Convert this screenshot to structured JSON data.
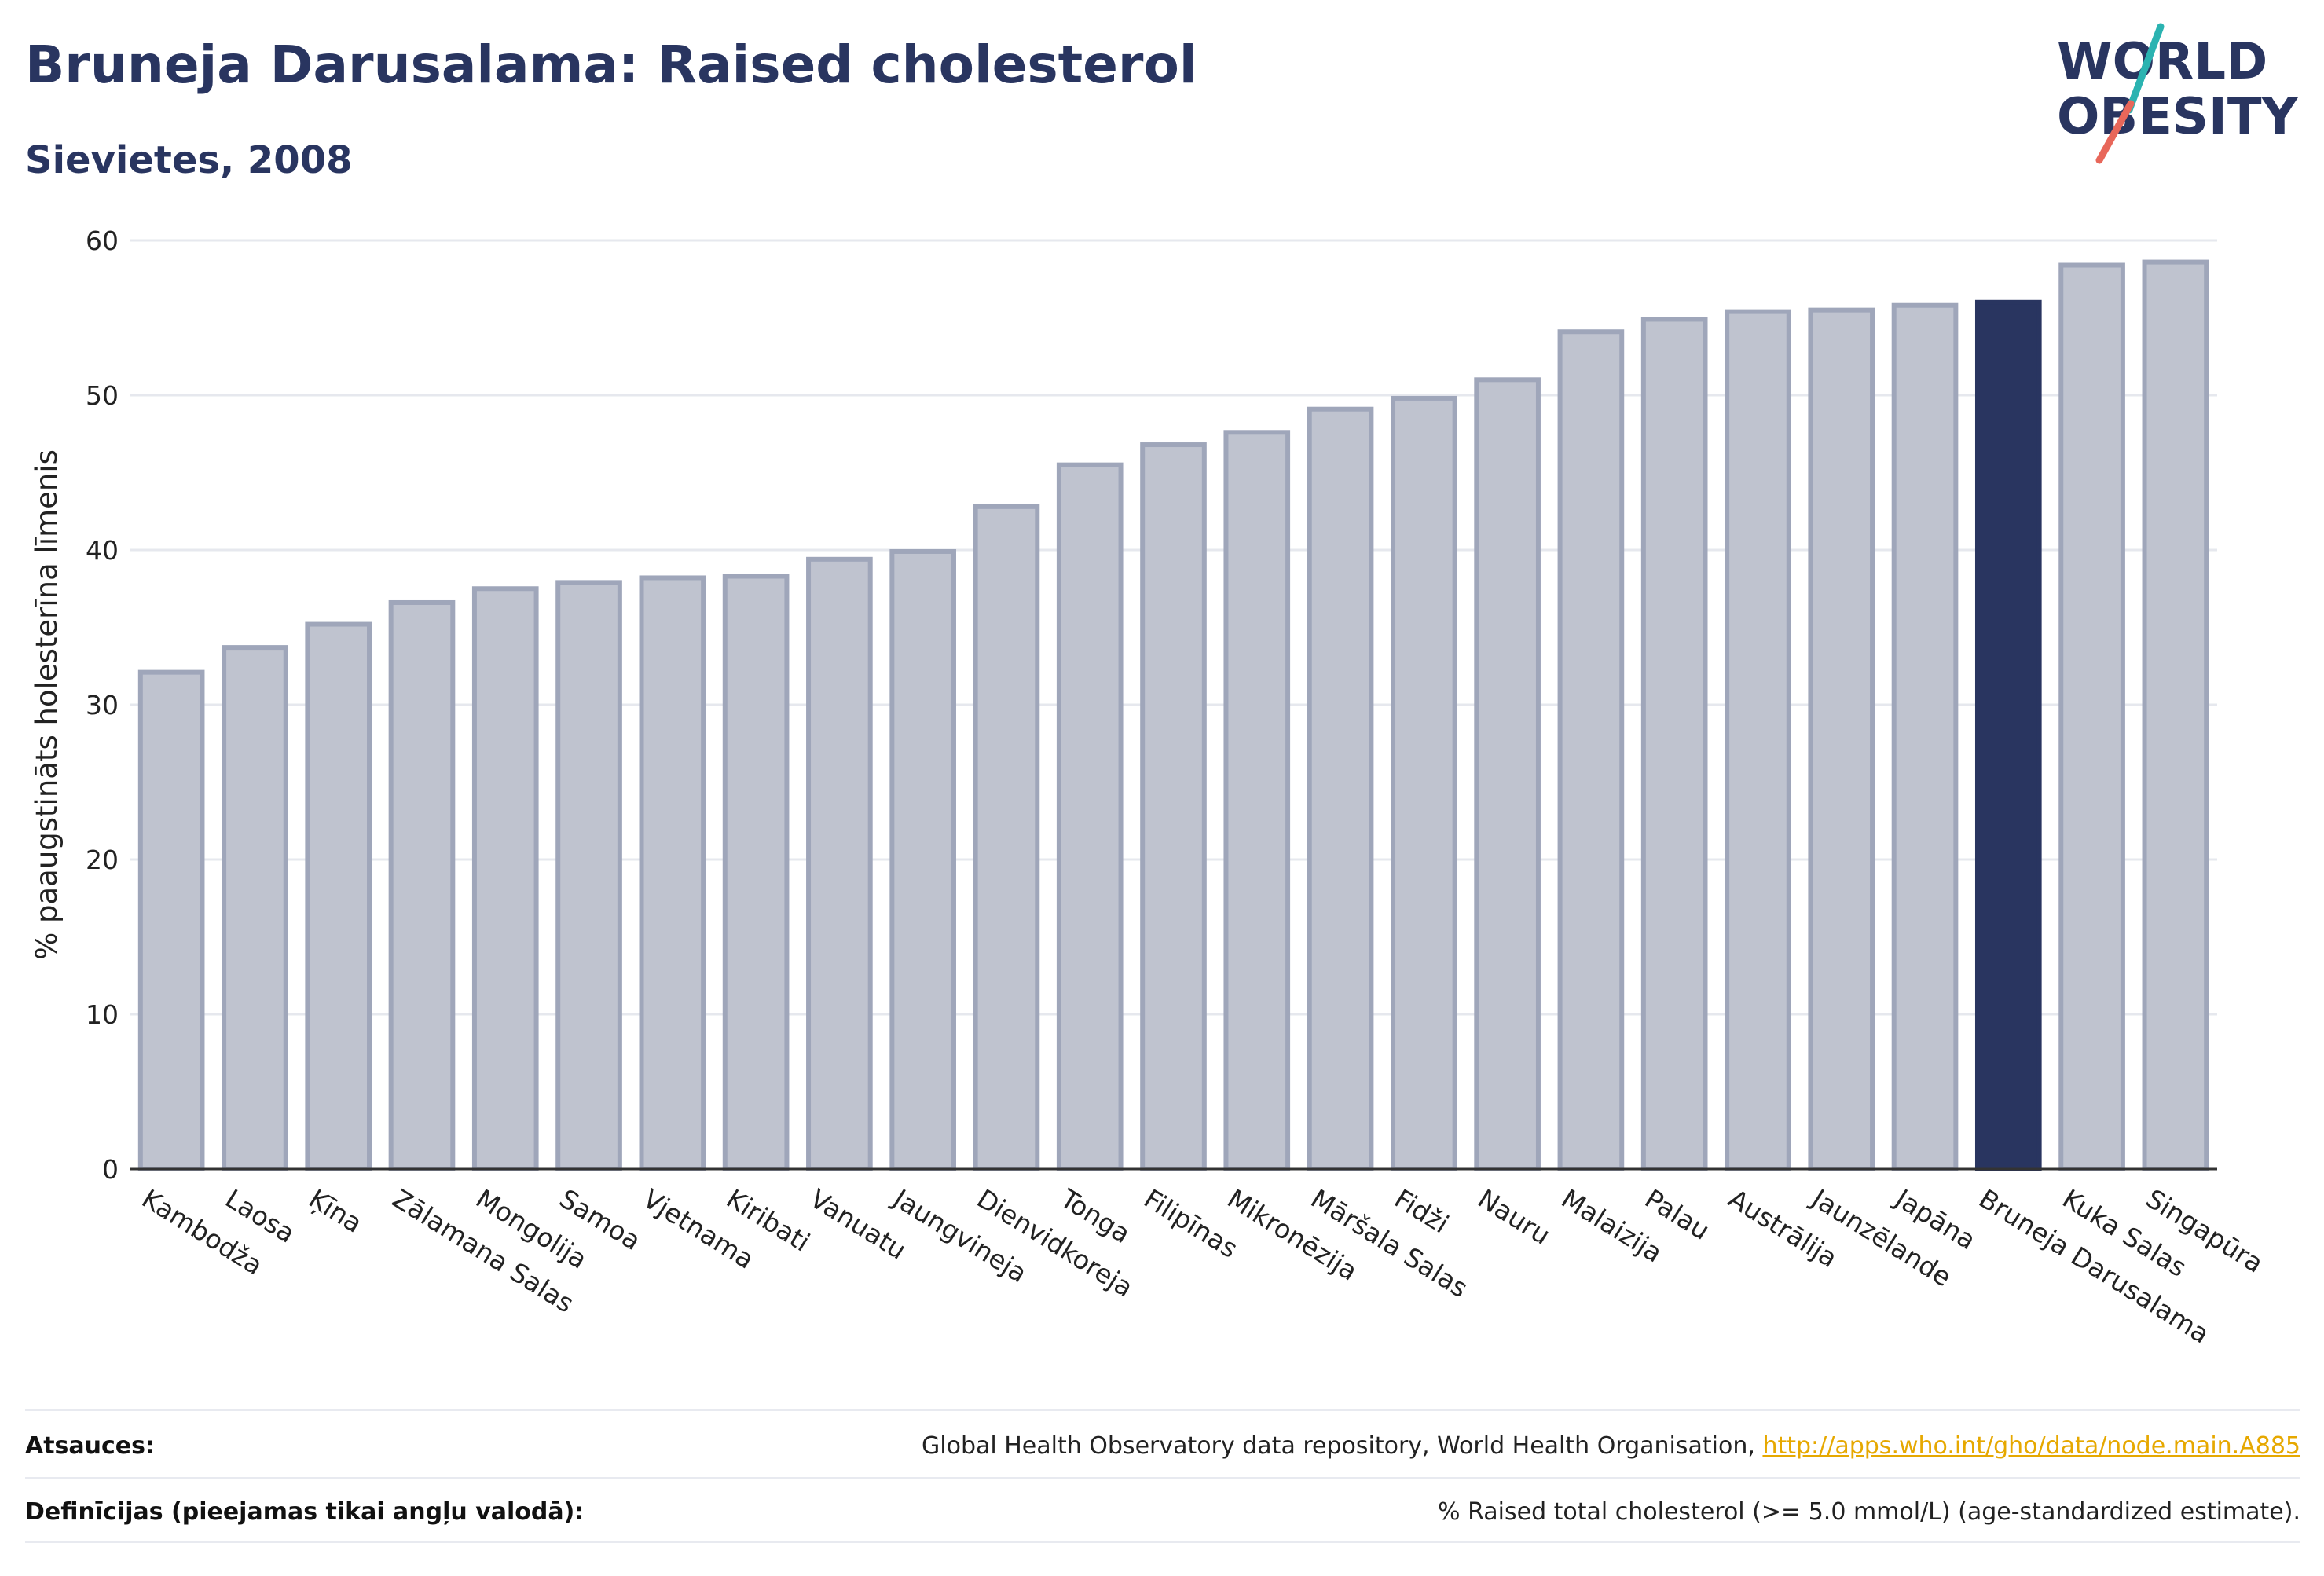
{
  "header": {
    "title": "Bruneja Darusalama: Raised cholesterol",
    "subtitle": "Sievietes, 2008"
  },
  "logo": {
    "line1": "WORLD",
    "line2": "OBESITY",
    "colors": {
      "text": "#293560",
      "slash_teal": "#2bb3b1",
      "slash_red": "#e8675a"
    }
  },
  "chart_data": {
    "type": "bar",
    "ylabel": "% paaugstināts holesterīna līmenis",
    "xlabel": "",
    "ylim": [
      0,
      60
    ],
    "yticks": [
      0,
      10,
      20,
      30,
      40,
      50,
      60
    ],
    "grid": true,
    "highlight": "Bruneja Darusalama",
    "colors": {
      "bar": "#bfc3cf",
      "bar_edge": "#9fa6ba",
      "highlight": "#293560",
      "grid": "#e6e8ee"
    },
    "categories": [
      "Kambodža",
      "Laosa",
      "Ķīna",
      "Zālamana Salas",
      "Mongolija",
      "Samoa",
      "Vjetnama",
      "Kiribati",
      "Vanuatu",
      "Jaungvineja",
      "Dienvidkoreja",
      "Tonga",
      "Filipīnas",
      "Mikronēzija",
      "Māršala Salas",
      "Fidži",
      "Nauru",
      "Malaizija",
      "Palau",
      "Austrālija",
      "Jaunzēlande",
      "Japāna",
      "Bruneja Darusalama",
      "Kuka Salas",
      "Singapūra"
    ],
    "values": [
      32.1,
      33.7,
      35.2,
      36.6,
      37.5,
      37.9,
      38.2,
      38.3,
      39.4,
      39.9,
      42.8,
      45.5,
      46.8,
      47.6,
      49.1,
      49.8,
      51.0,
      54.1,
      54.9,
      55.4,
      55.5,
      55.8,
      56.0,
      58.4,
      58.6
    ]
  },
  "footer": {
    "sources_label": "Atsauces:",
    "sources_text": "Global Health Observatory data repository, World Health Organisation, ",
    "sources_link": "http://apps.who.int/gho/data/node.main.A885",
    "definitions_label": "Definīcijas (pieejamas tikai angļu valodā):",
    "definitions_text": "% Raised total cholesterol (>= 5.0 mmol/L) (age-standardized estimate)."
  }
}
